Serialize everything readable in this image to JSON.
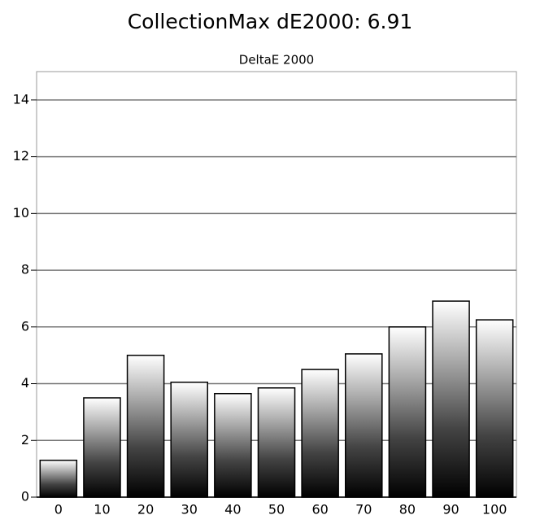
{
  "chart_data": {
    "type": "bar",
    "title": "CollectionMax dE2000: 6.91",
    "subtitle": "DeltaE 2000",
    "categories": [
      "0",
      "10",
      "20",
      "30",
      "40",
      "50",
      "60",
      "70",
      "80",
      "90",
      "100"
    ],
    "values": [
      1.3,
      3.5,
      5.0,
      4.05,
      3.65,
      3.85,
      4.5,
      5.05,
      6.0,
      6.91,
      6.25
    ],
    "ylim": [
      0,
      15
    ],
    "yticks": [
      0,
      2,
      4,
      6,
      8,
      10,
      12,
      14
    ],
    "grid": true
  }
}
